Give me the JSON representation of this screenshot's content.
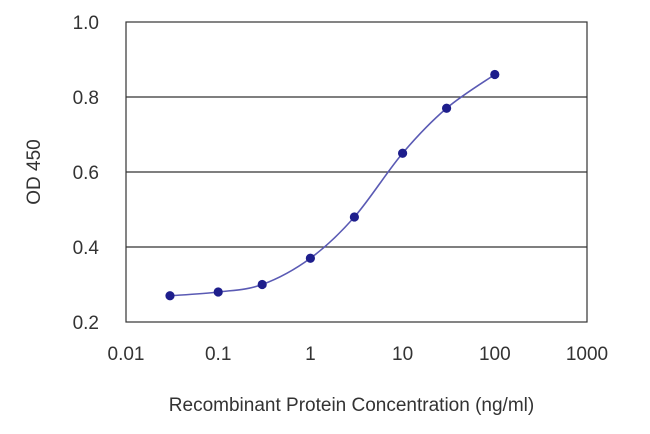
{
  "chart_data": {
    "type": "line",
    "title": "",
    "xlabel": "Recombinant Protein Concentration (ng/ml)",
    "ylabel": "OD 450",
    "xscale": "log",
    "xlim": [
      0.01,
      1000
    ],
    "ylim": [
      0.2,
      1.0
    ],
    "x_ticks": [
      "0.01",
      "0.1",
      "1",
      "10",
      "100",
      "1000"
    ],
    "y_ticks": [
      "0.2",
      "0.4",
      "0.6",
      "0.8",
      "1.0"
    ],
    "grid": "horizontal",
    "legend": "none",
    "colors": {
      "series": "#1e1e8c",
      "grid": "#333333",
      "frame": "#333333"
    },
    "series": [
      {
        "x": [
          0.03,
          0.1,
          0.3,
          1,
          3,
          10,
          30,
          100
        ],
        "y": [
          0.27,
          0.28,
          0.3,
          0.37,
          0.48,
          0.65,
          0.77,
          0.86
        ]
      }
    ]
  }
}
